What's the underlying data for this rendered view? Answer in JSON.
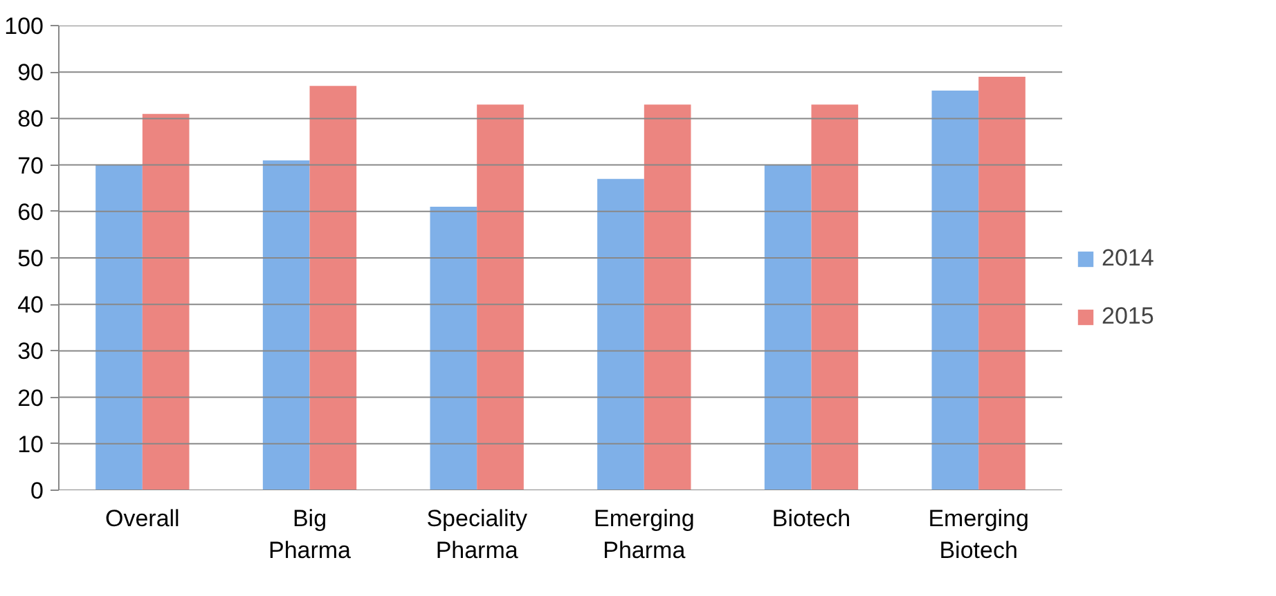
{
  "chart_data": {
    "type": "bar",
    "categories": [
      "Overall",
      "Big Pharma",
      "Speciality Pharma",
      "Emerging Pharma",
      "Biotech",
      "Emerging Biotech"
    ],
    "series": [
      {
        "name": "2014",
        "color": "#7fb0e8",
        "values": [
          70,
          71,
          61,
          67,
          70,
          86
        ]
      },
      {
        "name": "2015",
        "color": "#ec8580",
        "values": [
          81,
          87,
          83,
          83,
          83,
          89
        ]
      }
    ],
    "ylim": [
      0,
      100
    ],
    "yticks": [
      0,
      10,
      20,
      30,
      40,
      50,
      60,
      70,
      80,
      90,
      100
    ],
    "grid": "y",
    "legend": "right"
  }
}
